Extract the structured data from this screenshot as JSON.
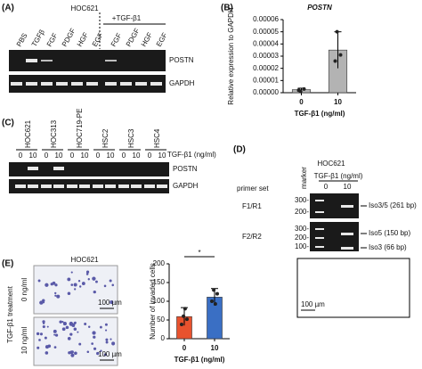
{
  "panel_a": {
    "label": "(A)",
    "cell_line": "HOC621",
    "treatment": "+TGF-β1",
    "lanes": [
      "PBS",
      "TGFβ",
      "FGF",
      "PDGF",
      "HGF",
      "EGF",
      "FGF",
      "PDGF",
      "HGF",
      "EGF"
    ],
    "bands": [
      "POSTN",
      "GAPDH"
    ]
  },
  "panel_c": {
    "label": "(C)",
    "cell_lines": [
      "HOC621",
      "HOC313",
      "HOC719-PE",
      "HSC2",
      "HSC3",
      "HSC4"
    ],
    "doses": [
      "0",
      "10"
    ],
    "dose_label": "TGF-β1 (ng/ml)",
    "bands": [
      "POSTN",
      "GAPDH"
    ]
  },
  "panel_d": {
    "label": "(D)",
    "cell_line": "HOC621",
    "primer_set": "primer set",
    "marker": "marker",
    "dose_label": "TGF-β1 (ng/ml)",
    "doses": [
      "0",
      "10"
    ],
    "primers": [
      "F1/R1",
      "F2/R2"
    ],
    "ladder_1": [
      "300-",
      "200-"
    ],
    "ladder_2": [
      "300-",
      "200-",
      "100-"
    ],
    "products": [
      "Iso3/5 (261 bp)",
      "Iso5 (150 bp)",
      "Iso3 (66 bp)"
    ],
    "scale_bar": "100 µm"
  },
  "panel_e": {
    "cell_line": "HOC621",
    "treatment": "TGF-β1 treatment",
    "conditions": [
      "0 ng/ml",
      "10 ng/ml"
    ],
    "scale_bars": [
      "100 µm",
      "100 µm"
    ]
  },
  "chart_data": [
    {
      "type": "bar",
      "panel_label": "(B)",
      "title": "POSTN",
      "ylabel": "Relative expression to GAPDH",
      "xlabel": "TGF-β1 (ng/ml)",
      "categories": [
        "0",
        "10"
      ],
      "values": [
        2.5e-06,
        3.5e-05
      ],
      "errors": [
        1.2e-06,
        1.5e-05
      ],
      "points": [
        [
          1e-06,
          3e-06,
          2e-06
        ],
        [
          5e-05,
          3.1e-05,
          2.6e-05
        ]
      ],
      "colors": [
        "#b3b3b3",
        "#b3b3b3"
      ],
      "ylim": [
        0,
        6e-05
      ],
      "yticks": [
        {
          "value": 0,
          "label": "0.00000"
        },
        {
          "value": 1e-05,
          "label": "0.00001"
        },
        {
          "value": 2e-05,
          "label": "0.00002"
        },
        {
          "value": 3e-05,
          "label": "0.00003"
        },
        {
          "value": 4e-05,
          "label": "0.00004"
        },
        {
          "value": 5e-05,
          "label": "0.00005"
        },
        {
          "value": 6e-05,
          "label": "0.00006"
        }
      ]
    },
    {
      "type": "bar",
      "panel_label": "(E)",
      "ylabel": "Number of invaded cells",
      "xlabel": "TGF-β1 (ng/ml)",
      "categories": [
        "0",
        "10"
      ],
      "values": [
        59,
        111
      ],
      "errors": [
        24,
        23
      ],
      "points": [
        [
          60,
          52,
          38,
          80
        ],
        [
          130,
          120,
          100,
          93
        ]
      ],
      "colors": [
        "#e8522e",
        "#3a6fc4"
      ],
      "annotation": "*",
      "ylim": [
        0,
        200
      ],
      "yticks": [
        0,
        50,
        100,
        150,
        200
      ]
    }
  ]
}
